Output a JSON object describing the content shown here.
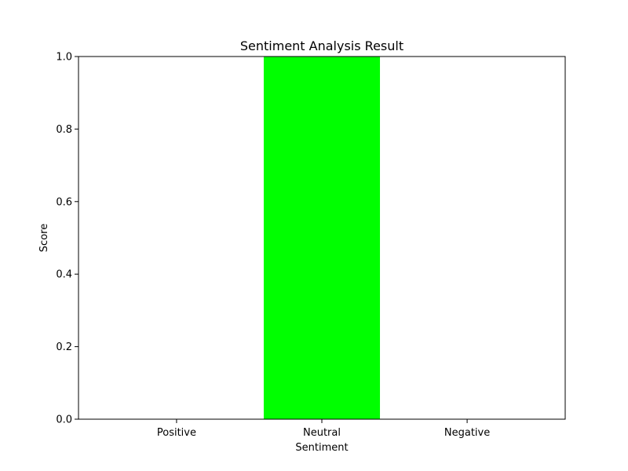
{
  "chart_data": {
    "type": "bar",
    "title": "Sentiment Analysis Result",
    "xlabel": "Sentiment",
    "ylabel": "Score",
    "categories": [
      "Positive",
      "Neutral",
      "Negative"
    ],
    "values": [
      0.0,
      1.0,
      0.0
    ],
    "ylim": [
      0.0,
      1.0
    ],
    "yticks": [
      "0.0",
      "0.2",
      "0.4",
      "0.6",
      "0.8",
      "1.0"
    ],
    "grid": false,
    "colors": {
      "bar": "#00ff00",
      "axes": "#000000",
      "background": "#ffffff"
    }
  }
}
